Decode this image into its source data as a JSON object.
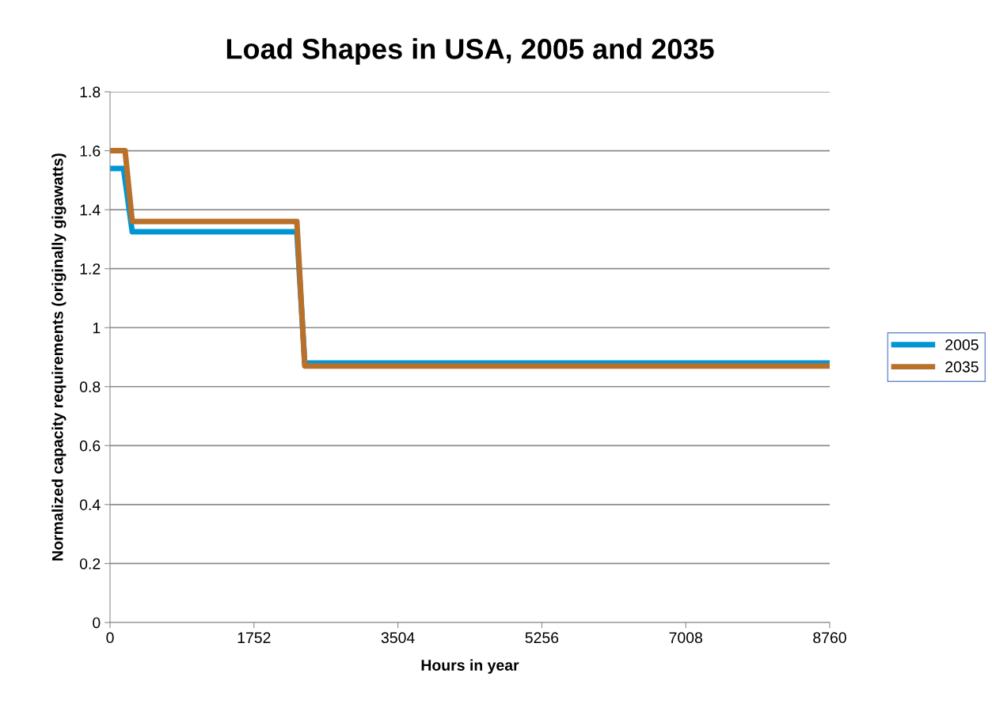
{
  "chart_data": {
    "type": "line",
    "title": "Load Shapes in USA, 2005 and 2035",
    "xlabel": "Hours in year",
    "ylabel": "Normalized capacity requirements (originally gigawatts)",
    "series": [
      {
        "name": "2005",
        "color": "#0096d6",
        "x": [
          0,
          164,
          270,
          2274,
          2370,
          8760
        ],
        "values": [
          1.54,
          1.54,
          1.325,
          1.325,
          0.88,
          0.88
        ]
      },
      {
        "name": "2035",
        "color": "#b8702a",
        "x": [
          0,
          183,
          270,
          2274,
          2370,
          8760
        ],
        "values": [
          1.6,
          1.6,
          1.36,
          1.36,
          0.87,
          0.87
        ]
      }
    ],
    "xlim": [
      0,
      8760
    ],
    "xticks": [
      0,
      1752,
      3504,
      5256,
      7008,
      8760
    ],
    "ylim": [
      0,
      1.8
    ],
    "yticks": [
      0,
      0.2,
      0.4,
      0.6,
      0.8,
      1,
      1.2,
      1.4,
      1.6,
      1.8
    ],
    "grid": "y",
    "legend": "right",
    "marker": "none",
    "line_style": "solid"
  }
}
